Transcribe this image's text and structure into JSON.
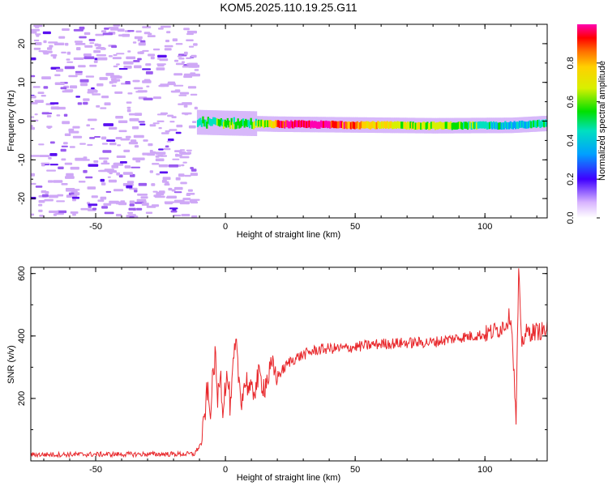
{
  "chart_data": [
    {
      "type": "heatmap",
      "title": "KOM5.2025.110.19.25.G11",
      "xlabel": "Height of straight line (km)",
      "ylabel": "Frequency (Hz)",
      "xlim": [
        -75,
        124
      ],
      "ylim": [
        -25,
        25
      ],
      "xticks": [
        -50,
        0,
        50,
        100
      ],
      "yticks": [
        -20,
        -10,
        0,
        10,
        20
      ],
      "colorbar": {
        "label": "Normalized spectral amplitude",
        "range": [
          0,
          1
        ],
        "ticks": [
          "0.0",
          "0.2",
          "0.4",
          "0.6",
          "0.8"
        ]
      },
      "noise_region_x": [
        -75,
        -11
      ],
      "ridge": {
        "x_start": -11,
        "x_end": 124,
        "center_freq_hz": [
          {
            "x": -11,
            "y": -0.3
          },
          {
            "x": 0,
            "y": -0.5
          },
          {
            "x": 20,
            "y": -0.8
          },
          {
            "x": 50,
            "y": -1.0
          },
          {
            "x": 80,
            "y": -1.2
          },
          {
            "x": 110,
            "y": -1.1
          },
          {
            "x": 124,
            "y": -0.6
          }
        ],
        "amplitude_profile": [
          {
            "x": -11,
            "a": 0.4
          },
          {
            "x": -5,
            "a": 0.45
          },
          {
            "x": 5,
            "a": 0.5
          },
          {
            "x": 15,
            "a": 0.55
          },
          {
            "x": 22,
            "a": 0.92
          },
          {
            "x": 35,
            "a": 0.98
          },
          {
            "x": 50,
            "a": 0.8
          },
          {
            "x": 70,
            "a": 0.6
          },
          {
            "x": 85,
            "a": 0.55
          },
          {
            "x": 100,
            "a": 0.45
          },
          {
            "x": 112,
            "a": 0.3
          },
          {
            "x": 124,
            "a": 0.45
          }
        ]
      }
    },
    {
      "type": "line",
      "xlabel": "Height of straight line (km)",
      "ylabel": "SNR (v/v)",
      "xlim": [
        -75,
        124
      ],
      "ylim": [
        0,
        620
      ],
      "xticks": [
        -50,
        0,
        50,
        100
      ],
      "yticks": [
        200,
        400,
        600
      ],
      "series": [
        {
          "color": "#e8272b",
          "x": [
            -75,
            -12,
            -9,
            -7,
            -6,
            -4,
            -3,
            -2,
            -1,
            0,
            1,
            2,
            3,
            4,
            5,
            6,
            8,
            10,
            13,
            15,
            18,
            20,
            25,
            30,
            35,
            40,
            45,
            50,
            60,
            70,
            80,
            90,
            100,
            105,
            108,
            110,
            111,
            112,
            113,
            114,
            116,
            120,
            124
          ],
          "y": [
            20,
            22,
            60,
            230,
            150,
            340,
            190,
            300,
            170,
            250,
            260,
            160,
            300,
            370,
            280,
            200,
            260,
            210,
            270,
            240,
            300,
            270,
            320,
            340,
            355,
            360,
            360,
            365,
            375,
            378,
            380,
            395,
            405,
            420,
            440,
            470,
            320,
            120,
            610,
            380,
            410,
            415,
            418
          ]
        }
      ],
      "noise": {
        "amplitude": 12
      }
    }
  ]
}
